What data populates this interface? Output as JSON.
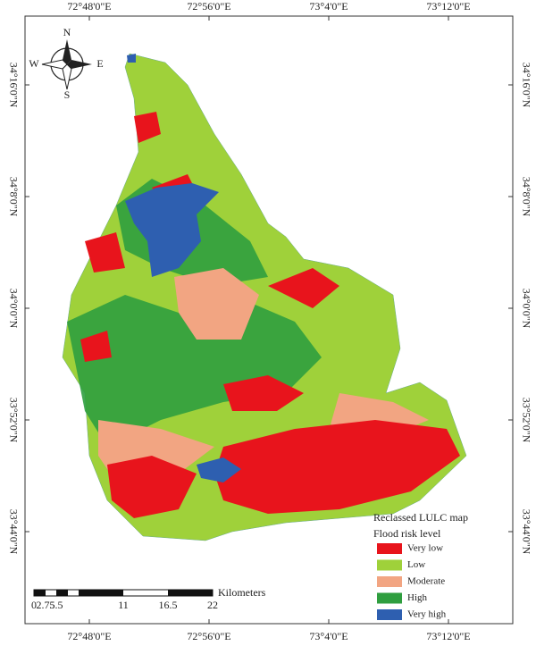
{
  "map": {
    "top_labels": [
      "72°48'0\"E",
      "72°56'0\"E",
      "73°4'0\"E",
      "73°12'0\"E"
    ],
    "bottom_labels": [
      "72°48'0\"E",
      "72°56'0\"E",
      "73°4'0\"E",
      "73°12'0\"E"
    ],
    "left_labels": [
      "34°16'0\"N",
      "34°8'0\"N",
      "34°0'0\"N",
      "33°52'0\"N",
      "33°44'0\"N"
    ],
    "right_labels": [
      "34°16'0\"N",
      "34°8'0\"N",
      "34°0'0\"N",
      "33°52'0\"N",
      "33°44'0\"N"
    ],
    "compass": {
      "north": "N",
      "south": "S",
      "west": "W",
      "east": "E"
    },
    "legend": {
      "title": "Reclassed LULC map",
      "subtitle": "Flood risk level",
      "items": [
        {
          "label": "Very low",
          "color": "#e8141c"
        },
        {
          "label": "Low",
          "color": "#9fd13a"
        },
        {
          "label": "Moderate",
          "color": "#f2a582"
        },
        {
          "label": "High",
          "color": "#2f9e3f"
        },
        {
          "label": "Very high",
          "color": "#2e5fb0"
        }
      ]
    },
    "scale_bar": {
      "unit": "Kilometers",
      "labels": [
        "0",
        "2.75",
        "5.5",
        "11",
        "16.5",
        "22"
      ]
    }
  }
}
